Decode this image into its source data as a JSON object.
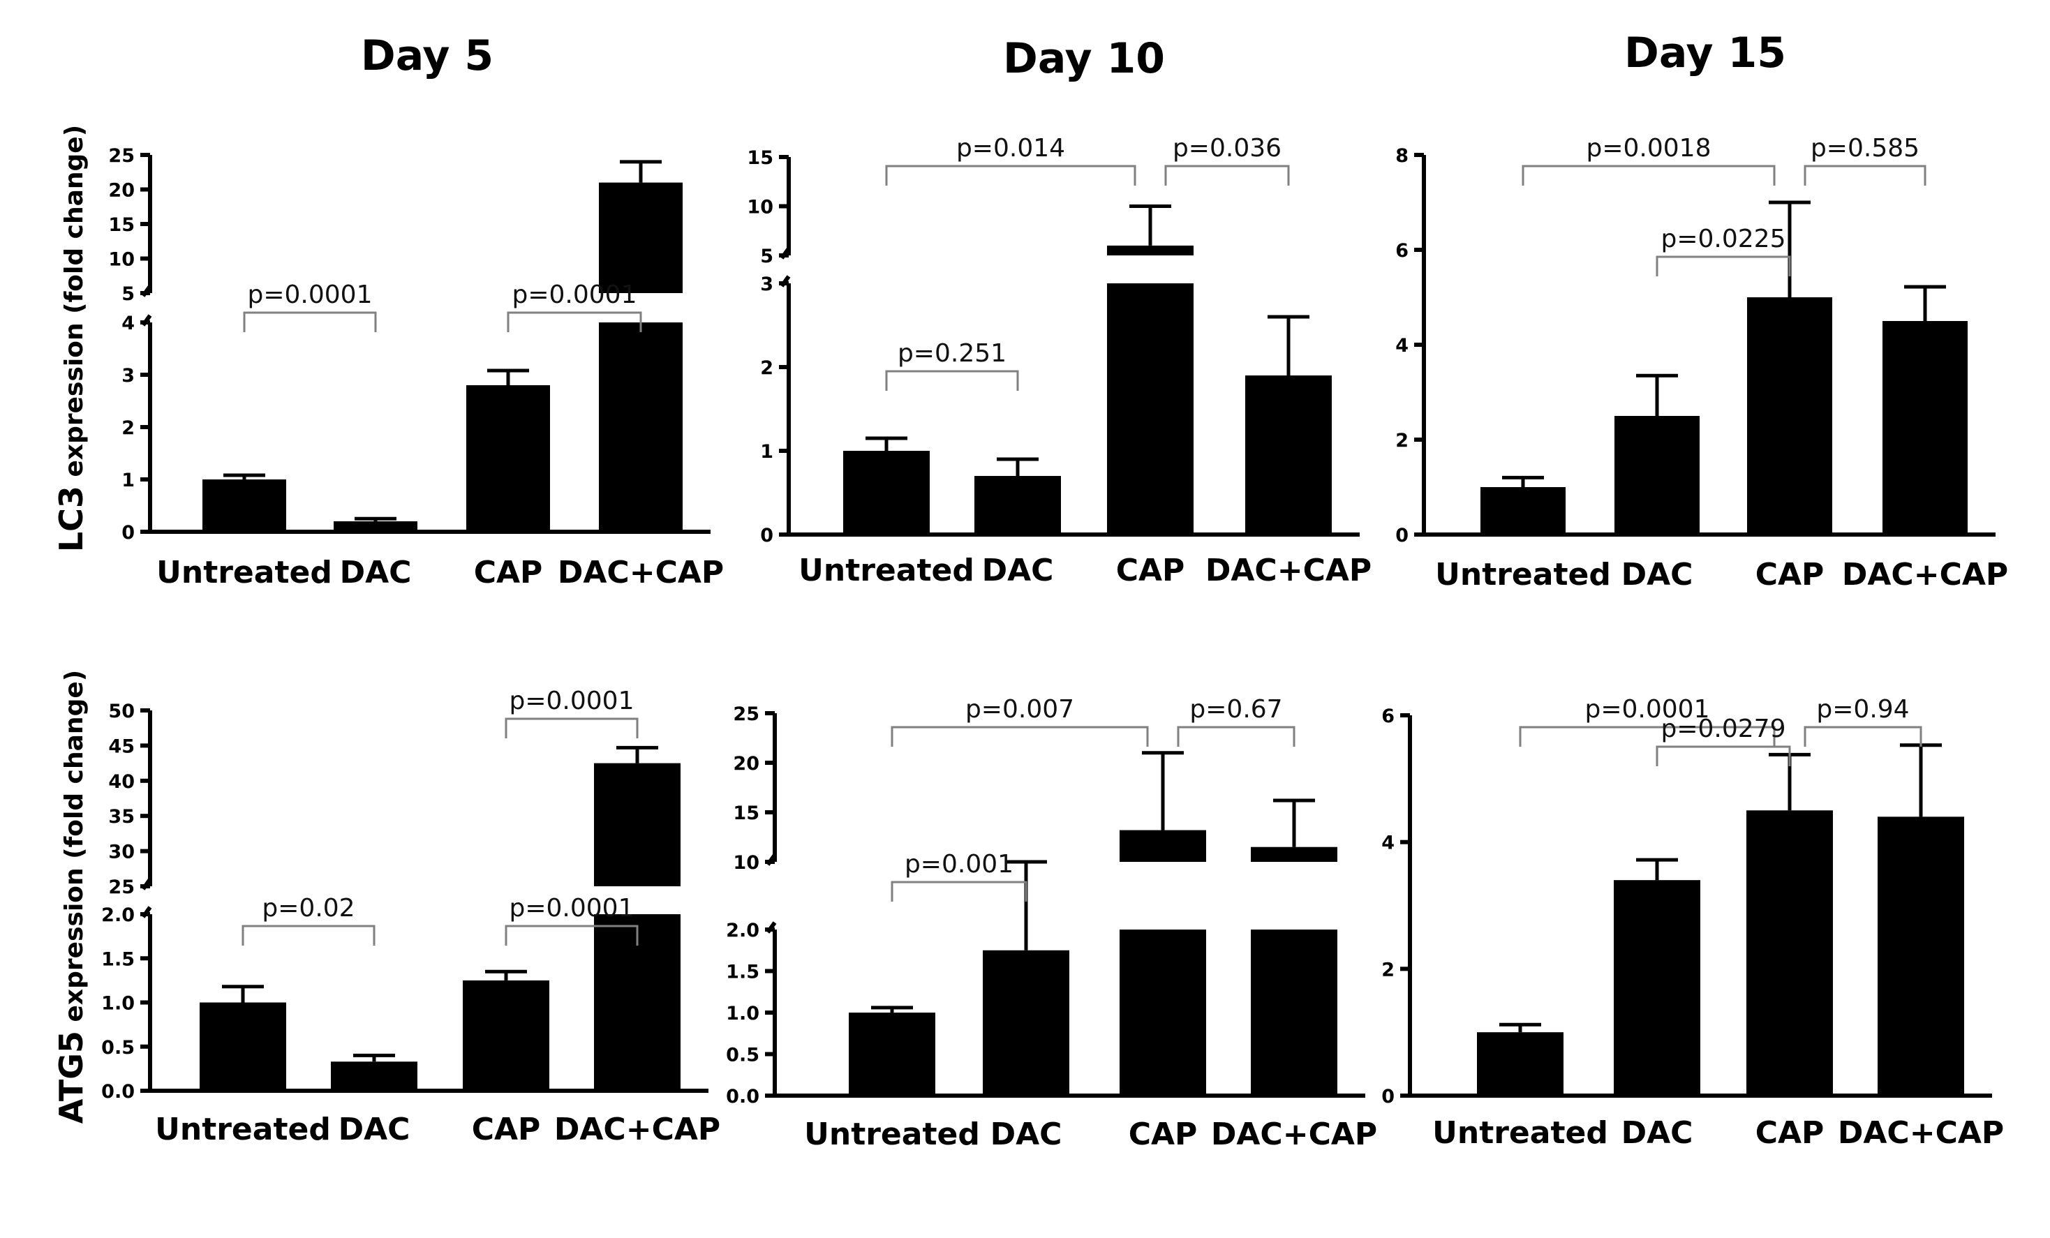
{
  "figure": {
    "row_labels": [
      {
        "gene": "LC3",
        "rest": " expression (fold change)"
      },
      {
        "gene": "ATG5",
        "rest": " expression (fold change)"
      }
    ],
    "column_titles": [
      "Day 5",
      "Day 10",
      "Day 15"
    ]
  },
  "chart_data": [
    {
      "type": "bar",
      "title": "Day 5",
      "gene": "LC3",
      "ylabel": "LC3 expression (fold change)",
      "categories": [
        "Untreated",
        "DAC",
        "CAP",
        "DAC+CAP"
      ],
      "values": [
        1.0,
        0.2,
        2.8,
        21.0
      ],
      "errors": [
        0.08,
        0.05,
        0.28,
        3.0
      ],
      "ylim_lower": [
        0,
        4
      ],
      "ylim_upper": [
        5,
        25
      ],
      "yticks_lower": [
        "0",
        "1",
        "2",
        "3",
        "4"
      ],
      "yticks_upper": [
        "5",
        "10",
        "15",
        "20",
        "25"
      ],
      "comparisons": [
        {
          "from": 0,
          "to": 1,
          "label": "p=0.0001"
        },
        {
          "from": 2,
          "to": 3,
          "label": "p=0.0001"
        }
      ]
    },
    {
      "type": "bar",
      "title": "Day 10",
      "gene": "LC3",
      "ylabel": "LC3 expression (fold change)",
      "categories": [
        "Untreated",
        "DAC",
        "CAP",
        "DAC+CAP"
      ],
      "values": [
        1.0,
        0.7,
        6.0,
        1.9
      ],
      "errors": [
        0.15,
        0.2,
        4.0,
        0.7
      ],
      "ylim_lower": [
        0,
        3
      ],
      "ylim_upper": [
        5,
        15
      ],
      "yticks_lower": [
        "0",
        "1",
        "2",
        "3"
      ],
      "yticks_upper": [
        "5",
        "10",
        "15"
      ],
      "comparisons": [
        {
          "from": 0,
          "to": 2,
          "label": "p=0.014"
        },
        {
          "from": 2,
          "to": 3,
          "label": "p=0.036"
        },
        {
          "from": 0,
          "to": 1,
          "label": "p=0.251"
        }
      ]
    },
    {
      "type": "bar",
      "title": "Day 15",
      "gene": "LC3",
      "ylabel": "LC3 expression (fold change)",
      "categories": [
        "Untreated",
        "DAC",
        "CAP",
        "DAC+CAP"
      ],
      "values": [
        1.0,
        2.5,
        5.0,
        4.5
      ],
      "errors": [
        0.2,
        0.85,
        2.0,
        0.72
      ],
      "ylim": [
        0,
        8
      ],
      "yticks": [
        "0",
        "2",
        "4",
        "6",
        "8"
      ],
      "comparisons": [
        {
          "from": 0,
          "to": 2,
          "label": "p=0.0018"
        },
        {
          "from": 2,
          "to": 3,
          "label": "p=0.585"
        },
        {
          "from": 1,
          "to": 2,
          "label": "p=0.0225"
        }
      ]
    },
    {
      "type": "bar",
      "title": "Day 5",
      "gene": "ATG5",
      "ylabel": "ATG5 expression (fold change)",
      "categories": [
        "Untreated",
        "DAC",
        "CAP",
        "DAC+CAP"
      ],
      "values": [
        1.0,
        0.33,
        1.25,
        42.5
      ],
      "errors": [
        0.18,
        0.07,
        0.1,
        2.2
      ],
      "ylim_lower": [
        0,
        2.0
      ],
      "ylim_upper": [
        25,
        50
      ],
      "yticks_lower": [
        "0.0",
        "0.5",
        "1.0",
        "1.5",
        "2.0"
      ],
      "yticks_upper": [
        "25",
        "30",
        "35",
        "40",
        "45",
        "50"
      ],
      "comparisons": [
        {
          "from": 3,
          "to": 2,
          "label": "p=0.0001",
          "tier": "top"
        },
        {
          "from": 0,
          "to": 1,
          "label": "p=0.02"
        },
        {
          "from": 2,
          "to": 3,
          "label": "p=0.0001"
        }
      ]
    },
    {
      "type": "bar",
      "title": "Day 10",
      "gene": "ATG5",
      "ylabel": "ATG5 expression (fold change)",
      "categories": [
        "Untreated",
        "DAC",
        "CAP",
        "DAC+CAP"
      ],
      "values": [
        1.0,
        1.75,
        13.2,
        11.5
      ],
      "errors": [
        0.06,
        0.37,
        7.8,
        4.7
      ],
      "ylim_lower": [
        0,
        2.0
      ],
      "ylim_upper": [
        10,
        25
      ],
      "yticks_lower": [
        "0.0",
        "0.5",
        "1.0",
        "1.5",
        "2.0"
      ],
      "yticks_upper": [
        "10",
        "15",
        "20",
        "25"
      ],
      "comparisons": [
        {
          "from": 0,
          "to": 2,
          "label": "p=0.007"
        },
        {
          "from": 2,
          "to": 3,
          "label": "p=0.67"
        },
        {
          "from": 0,
          "to": 1,
          "label": "p=0.001"
        }
      ]
    },
    {
      "type": "bar",
      "title": "Day 15",
      "gene": "ATG5",
      "ylabel": "ATG5 expression (fold change)",
      "categories": [
        "Untreated",
        "DAC",
        "CAP",
        "DAC+CAP"
      ],
      "values": [
        1.0,
        3.4,
        4.5,
        4.4
      ],
      "errors": [
        0.12,
        0.32,
        0.88,
        1.13
      ],
      "ylim": [
        0,
        6
      ],
      "yticks": [
        "0",
        "2",
        "4",
        "6"
      ],
      "comparisons": [
        {
          "from": 0,
          "to": 2,
          "label": "p=0.0001"
        },
        {
          "from": 2,
          "to": 3,
          "label": "p=0.94"
        },
        {
          "from": 1,
          "to": 2,
          "label": "p=0.0279"
        }
      ]
    }
  ]
}
